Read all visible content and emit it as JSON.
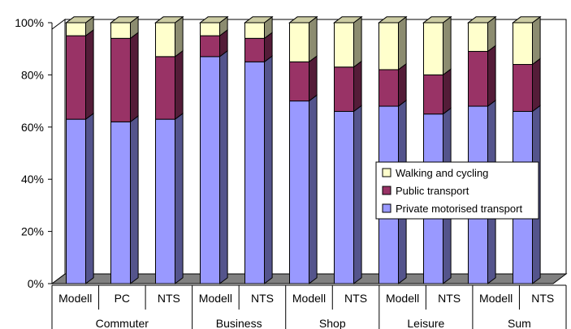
{
  "chart_data": {
    "type": "bar",
    "stacked": true,
    "percent": true,
    "three_d": true,
    "ylim": [
      0,
      100
    ],
    "yticks": [
      "0%",
      "20%",
      "40%",
      "60%",
      "80%",
      "100%"
    ],
    "categories": [
      "Modell",
      "PC",
      "NTS",
      "Modell",
      "NTS",
      "Modell",
      "NTS",
      "Modell",
      "NTS",
      "Modell",
      "NTS"
    ],
    "groups": [
      {
        "label": "Commuter",
        "count": 3
      },
      {
        "label": "Business",
        "count": 2
      },
      {
        "label": "Shop",
        "count": 2
      },
      {
        "label": "Leisure",
        "count": 2
      },
      {
        "label": "Sum",
        "count": 2
      }
    ],
    "series": [
      {
        "name": "Private motorised transport",
        "color": "#9999ff",
        "values": [
          63,
          62,
          63,
          87,
          85,
          70,
          66,
          68,
          65,
          68,
          66
        ]
      },
      {
        "name": "Public transport",
        "color": "#993366",
        "values": [
          32,
          32,
          24,
          8,
          9,
          15,
          17,
          14,
          15,
          21,
          18
        ]
      },
      {
        "name": "Walking and cycling",
        "color": "#ffffcc",
        "values": [
          5,
          6,
          13,
          5,
          6,
          15,
          17,
          18,
          20,
          11,
          16
        ]
      }
    ],
    "legend_position": "right",
    "grid": false
  }
}
